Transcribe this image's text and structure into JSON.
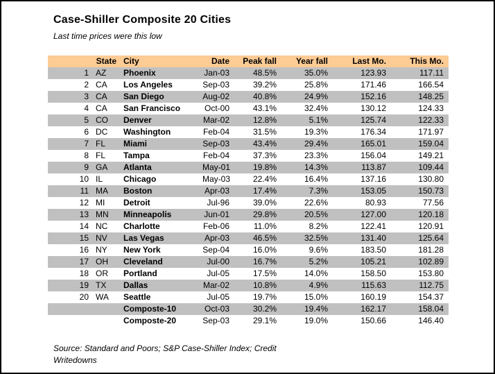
{
  "title": "Case-Shiller Composite 20 Cities",
  "subtitle": "Last time prices were this low",
  "source": {
    "line1": "Source: Standard and Poors; S&P Case-Shiller Index; Credit",
    "line2": "Writedowns"
  },
  "colors": {
    "header_bg": "#FDCB94",
    "alt_row_bg": "#C0C0C0",
    "text": "#000000",
    "frame_border": "#000000"
  },
  "chart_data": {
    "type": "table",
    "title": "Case-Shiller Composite 20 Cities",
    "subtitle": "Last time prices were this low",
    "columns": [
      "State",
      "City",
      "Date",
      "Peak fall",
      "Year fall",
      "Last Mo.",
      "This Mo."
    ],
    "row_fields": [
      "num",
      "state",
      "city",
      "date",
      "peak_fall",
      "year_fall",
      "last_mo",
      "this_mo"
    ],
    "rows": [
      [
        "1",
        "AZ",
        "Phoenix",
        "Jan-03",
        "48.5%",
        "35.0%",
        "123.93",
        "117.11"
      ],
      [
        "2",
        "CA",
        "Los Angeles",
        "Sep-03",
        "39.2%",
        "25.8%",
        "171.46",
        "166.54"
      ],
      [
        "3",
        "CA",
        "San Diego",
        "Aug-02",
        "40.8%",
        "24.9%",
        "152.16",
        "148.25"
      ],
      [
        "4",
        "CA",
        "San Francisco",
        "Oct-00",
        "43.1%",
        "32.4%",
        "130.12",
        "124.33"
      ],
      [
        "5",
        "CO",
        "Denver",
        "Mar-02",
        "12.8%",
        "5.1%",
        "125.74",
        "122.33"
      ],
      [
        "6",
        "DC",
        "Washington",
        "Feb-04",
        "31.5%",
        "19.3%",
        "176.34",
        "171.97"
      ],
      [
        "7",
        "FL",
        "Miami",
        "Sep-03",
        "43.4%",
        "29.4%",
        "165.01",
        "159.04"
      ],
      [
        "8",
        "FL",
        "Tampa",
        "Feb-04",
        "37.3%",
        "23.3%",
        "156.04",
        "149.21"
      ],
      [
        "9",
        "GA",
        "Atlanta",
        "May-01",
        "19.8%",
        "14.3%",
        "113.87",
        "109.44"
      ],
      [
        "10",
        "IL",
        "Chicago",
        "May-03",
        "22.4%",
        "16.4%",
        "137.16",
        "130.80"
      ],
      [
        "11",
        "MA",
        "Boston",
        "Apr-03",
        "17.4%",
        "7.3%",
        "153.05",
        "150.73"
      ],
      [
        "12",
        "MI",
        "Detroit",
        "Jul-96",
        "39.0%",
        "22.6%",
        "80.93",
        "77.56"
      ],
      [
        "13",
        "MN",
        "Minneapolis",
        "Jun-01",
        "29.8%",
        "20.5%",
        "127.00",
        "120.18"
      ],
      [
        "14",
        "NC",
        "Charlotte",
        "Feb-06",
        "11.0%",
        "8.2%",
        "122.41",
        "120.91"
      ],
      [
        "15",
        "NV",
        "Las Vegas",
        "Apr-03",
        "46.5%",
        "32.5%",
        "131.40",
        "125.64"
      ],
      [
        "16",
        "NY",
        "New York",
        "Sep-04",
        "16.0%",
        "9.6%",
        "183.50",
        "181.28"
      ],
      [
        "17",
        "OH",
        "Cleveland",
        "Jul-00",
        "16.7%",
        "5.2%",
        "105.21",
        "102.89"
      ],
      [
        "18",
        "OR",
        "Portland",
        "Jul-05",
        "17.5%",
        "14.0%",
        "158.50",
        "153.80"
      ],
      [
        "19",
        "TX",
        "Dallas",
        "Mar-02",
        "10.8%",
        "4.9%",
        "115.63",
        "112.75"
      ],
      [
        "20",
        "WA",
        "Seattle",
        "Jul-05",
        "19.7%",
        "15.0%",
        "160.19",
        "154.37"
      ],
      [
        "",
        "",
        "Composte-10",
        "Oct-03",
        "30.2%",
        "19.4%",
        "162.17",
        "158.04"
      ],
      [
        "",
        "",
        "Composte-20",
        "Sep-03",
        "29.1%",
        "19.0%",
        "150.66",
        "146.40"
      ]
    ]
  }
}
